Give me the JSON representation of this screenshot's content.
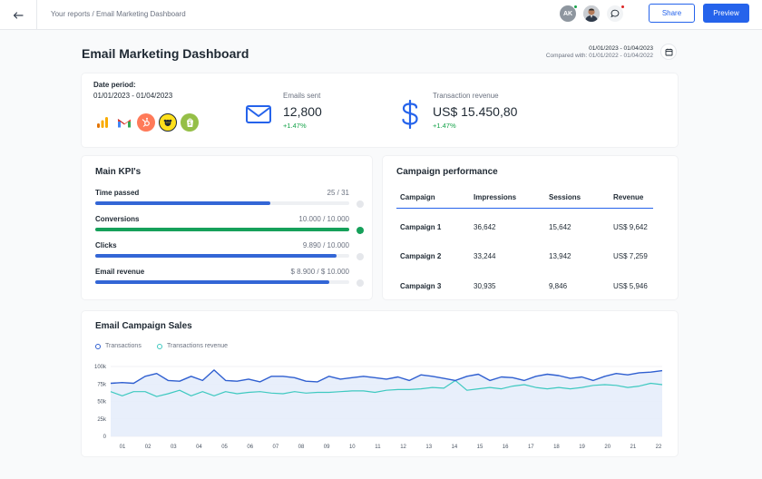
{
  "header": {
    "breadcrumb": "Your reports / Email Marketing Dashboard",
    "avatar_initials": "AK",
    "share_label": "Share",
    "preview_label": "Preview",
    "icons": [
      "back-arrow-icon",
      "chat-icon",
      "calendar-icon"
    ],
    "status_colors": {
      "online": "#16a34a",
      "alert": "#dc2626"
    }
  },
  "page": {
    "title": "Email Marketing Dashboard",
    "date_range": "01/01/2023 - 01/04/2023",
    "compared_with": "Compared with: 01/01/2022 - 01/04/2022"
  },
  "summary": {
    "date_period_label": "Date period:",
    "date_period_value": "01/01/2023 - 01/04/2023",
    "integrations": [
      "google-analytics-icon",
      "gmail-icon",
      "hubspot-icon",
      "mailchimp-icon",
      "shopify-icon"
    ],
    "emails_sent": {
      "label": "Emails sent",
      "value": "12,800",
      "change": "+1.47%"
    },
    "transaction_revenue": {
      "label": "Transaction revenue",
      "value": "US$ 15.450,80",
      "change": "+1.47%"
    }
  },
  "kpis": {
    "title": "Main KPI's",
    "items": [
      {
        "label": "Time passed",
        "value": "25 / 31",
        "progress": 0.69,
        "color": "#3366d6",
        "done": false
      },
      {
        "label": "Conversions",
        "value": "10.000 / 10.000",
        "progress": 1.0,
        "color": "#16a05a",
        "done": true
      },
      {
        "label": "Clicks",
        "value": "9.890 / 10.000",
        "progress": 0.95,
        "color": "#3366d6",
        "done": false
      },
      {
        "label": "Email revenue",
        "value": "$ 8.900 / $ 10.000",
        "progress": 0.92,
        "color": "#3366d6",
        "done": false
      }
    ]
  },
  "campaigns": {
    "title": "Campaign performance",
    "columns": [
      "Campaign",
      "Impressions",
      "Sessions",
      "Revenue"
    ],
    "rows": [
      [
        "Campaign 1",
        "36,642",
        "15,642",
        "US$ 9,642"
      ],
      [
        "Campaign 2",
        "33,244",
        "13,942",
        "US$ 7,259"
      ],
      [
        "Campaign 3",
        "30,935",
        "9,846",
        "US$ 5,946"
      ]
    ]
  },
  "chart_data": {
    "type": "area",
    "title": "Email Campaign Sales",
    "legend_position": "top-left",
    "grid": true,
    "ylim": [
      0,
      100000
    ],
    "y_ticks": [
      "0",
      "25k",
      "50k",
      "75k",
      "100k"
    ],
    "y_tick_values": [
      0,
      25000,
      50000,
      75000,
      100000
    ],
    "x_tick_labels": [
      "01",
      "02",
      "03",
      "04",
      "05",
      "06",
      "07",
      "08",
      "09",
      "10",
      "11",
      "12",
      "13",
      "14",
      "15",
      "16",
      "17",
      "18",
      "19",
      "20",
      "21",
      "22"
    ],
    "series": [
      {
        "name": "Transactions",
        "color": "#2f5fd0",
        "values": [
          76000,
          77000,
          76000,
          86000,
          90000,
          80000,
          79000,
          86000,
          80000,
          95000,
          80000,
          79000,
          82000,
          78000,
          86000,
          86000,
          84000,
          79000,
          78000,
          86000,
          82000,
          84000,
          86000,
          84000,
          82000,
          85000,
          80000,
          88000,
          86000,
          83000,
          80000,
          86000,
          89000,
          80000,
          85000,
          84000,
          80000,
          86000,
          89000,
          87000,
          83000,
          85000,
          80000,
          86000,
          90000,
          88000,
          91000,
          92000,
          94000
        ]
      },
      {
        "name": "Transactions revenue",
        "color": "#3ec9c0",
        "values": [
          64000,
          58000,
          64000,
          64000,
          57000,
          61000,
          66000,
          58000,
          64000,
          58000,
          64000,
          61000,
          63000,
          64000,
          62000,
          61000,
          64000,
          62000,
          63000,
          63000,
          64000,
          65000,
          65000,
          63000,
          66000,
          67000,
          67000,
          68000,
          70000,
          69000,
          80000,
          66000,
          68000,
          70000,
          68000,
          72000,
          74000,
          70000,
          68000,
          70000,
          68000,
          70000,
          73000,
          74000,
          73000,
          70000,
          72000,
          76000,
          74000
        ]
      }
    ]
  }
}
